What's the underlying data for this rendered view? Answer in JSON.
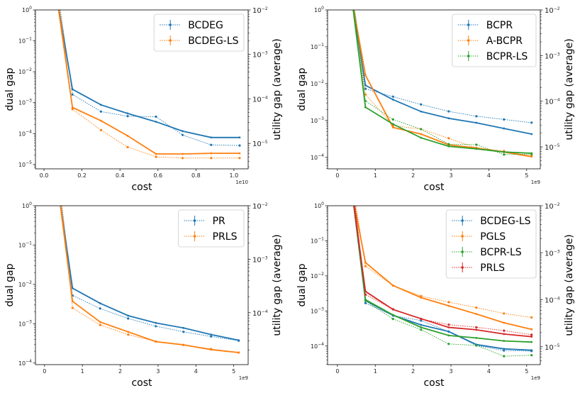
{
  "colors": {
    "blue": "#1f77b4",
    "orange": "#ff7f0e",
    "green": "#2ca02c",
    "red": "#d62728"
  },
  "chart_data": [
    {
      "type": "line",
      "xlabel": "cost",
      "ylabel": "dual gap",
      "y2label": "utility gap (average)",
      "x_offset_label": "1e10",
      "xlim": [
        -0.045,
        1.075
      ],
      "ylim_log10": [
        -5.14,
        0
      ],
      "y2lim_log10": [
        -5.57,
        -2
      ],
      "xticks": [
        "0.0",
        "0.2",
        "0.4",
        "0.6",
        "0.8",
        "1.0"
      ],
      "yticks": [
        0,
        -1,
        -2,
        -3,
        -4,
        -5
      ],
      "y2ticks": [
        -2,
        -3,
        -4,
        -5
      ],
      "legend_position": "upper right",
      "x": [
        0.07,
        0.15,
        0.3,
        0.44,
        0.59,
        0.73,
        0.88,
        1.03
      ],
      "series": [
        {
          "name": "BCDEG",
          "color": "blue",
          "dual_gap": [
            2,
            0.0027,
            0.00085,
            0.00045,
            0.00024,
            0.00012,
            7.5e-05,
            7.5e-05
          ],
          "utility_gap": [
            0.03,
            0.000126,
            5.2e-05,
            4.1e-05,
            4e-05,
            1.55e-05,
            9.3e-06,
            9e-06
          ]
        },
        {
          "name": "BCDEG-LS",
          "color": "orange",
          "dual_gap": [
            2,
            0.0007,
            0.00026,
            8.5e-05,
            2.2e-05,
            2.2e-05,
            2.3e-05,
            2.3e-05
          ],
          "utility_gap": [
            0.03,
            5.9e-05,
            2e-05,
            8.3e-06,
            5e-06,
            4.7e-06,
            4.7e-06,
            4.7e-06
          ]
        }
      ]
    },
    {
      "type": "line",
      "xlabel": "cost",
      "ylabel": "dual gap",
      "y2label": "utility gap (average)",
      "x_offset_label": "1e9",
      "xlim": [
        -0.26,
        5.36
      ],
      "ylim_log10": [
        -4.31,
        0
      ],
      "y2lim_log10": [
        -5.48,
        -2
      ],
      "xticks": [
        "0",
        "1",
        "2",
        "3",
        "4",
        "5"
      ],
      "yticks": [
        0,
        -1,
        -2,
        -3,
        -4
      ],
      "y2ticks": [
        -2,
        -3,
        -4,
        -5
      ],
      "legend_position": "upper right",
      "x": [
        0.38,
        0.74,
        1.47,
        2.21,
        2.94,
        3.67,
        4.4,
        5.13
      ],
      "series": [
        {
          "name": "BCPR",
          "color": "blue",
          "dual_gap": [
            2,
            0.009,
            0.0037,
            0.00175,
            0.00115,
            0.00087,
            0.00061,
            0.00043
          ],
          "utility_gap": [
            0.03,
            0.000187,
            0.000126,
            8.5e-05,
            6e-05,
            4.7e-05,
            4e-05,
            3.4e-05
          ]
        },
        {
          "name": "A-BCPR",
          "color": "orange",
          "dual_gap": [
            2,
            0.017,
            0.00065,
            0.00043,
            0.00022,
            0.00018,
            0.00014,
            0.000105
          ],
          "utility_gap": [
            0.03,
            0.000141,
            2.95e-05,
            2.45e-05,
            1.55e-05,
            9.5e-06,
            8.1e-06,
            6.3e-06
          ]
        },
        {
          "name": "BCPR-LS",
          "color": "green",
          "dual_gap": [
            2,
            0.0023,
            0.0008,
            0.00034,
            0.0002,
            0.00017,
            0.00014,
            0.00013
          ],
          "utility_gap": [
            0.03,
            0.000102,
            4e-05,
            2.45e-05,
            1.15e-05,
            1.12e-05,
            6.8e-06,
            6.9e-06
          ]
        }
      ]
    },
    {
      "type": "line",
      "xlabel": "cost",
      "ylabel": "dual gap",
      "y2label": "utility gap (average)",
      "x_offset_label": "1e9",
      "xlim": [
        -0.24,
        5.38
      ],
      "ylim_log10": [
        -4.04,
        0
      ],
      "y2lim_log10": [
        -4.97,
        -2
      ],
      "xticks": [
        "0",
        "1",
        "2",
        "3",
        "4",
        "5"
      ],
      "yticks": [
        0,
        -1,
        -2,
        -3,
        -4
      ],
      "y2ticks": [
        -2,
        -3,
        -4
      ],
      "legend_position": "upper right",
      "x": [
        0.38,
        0.74,
        1.47,
        2.21,
        2.94,
        3.67,
        4.4,
        5.13
      ],
      "series": [
        {
          "name": "PR",
          "color": "blue",
          "dual_gap": [
            2,
            0.008,
            0.0033,
            0.0016,
            0.00105,
            0.00078,
            0.00053,
            0.00038
          ],
          "utility_gap": [
            0.03,
            0.00021,
            0.00012,
            7.8e-05,
            5.6e-05,
            4.4e-05,
            3.6e-05,
            3e-05
          ]
        },
        {
          "name": "PRLS",
          "color": "orange",
          "dual_gap": [
            2,
            0.0037,
            0.0011,
            0.00062,
            0.00035,
            0.00029,
            0.00022,
            0.000185
          ],
          "utility_gap": [
            0.03,
            0.000123,
            5.9e-05,
            3.9e-05,
            2.9e-05,
            2.5e-05,
            2.1e-05,
            1.8e-05
          ]
        }
      ]
    },
    {
      "type": "line",
      "xlabel": "cost",
      "ylabel": "dual gap",
      "y2label": "utility gap (average)",
      "x_offset_label": "1e9",
      "xlim": [
        -0.26,
        5.36
      ],
      "ylim_log10": [
        -4.53,
        0
      ],
      "y2lim_log10": [
        -5.38,
        -2
      ],
      "xticks": [
        "0",
        "1",
        "2",
        "3",
        "4",
        "5"
      ],
      "yticks": [
        0,
        -1,
        -2,
        -3,
        -4
      ],
      "y2ticks": [
        -2,
        -3,
        -4,
        -5
      ],
      "legend_position": "upper right",
      "x": [
        0.4,
        0.74,
        1.47,
        2.21,
        2.94,
        3.67,
        4.4,
        5.13
      ],
      "series": [
        {
          "name": "BCDEG-LS",
          "color": "blue",
          "dual_gap": [
            2,
            0.002,
            0.00075,
            0.0004,
            0.00026,
            0.00011,
            8.3e-05,
            7.6e-05
          ],
          "utility_gap": [
            0.03,
            8.5e-05,
            4.6e-05,
            3.6e-05,
            2.1e-05,
            1.07e-05,
            8.3e-06,
            8.1e-06
          ]
        },
        {
          "name": "PGLS",
          "color": "orange",
          "dual_gap": [
            2,
            0.024,
            0.0053,
            0.0024,
            0.0014,
            0.00082,
            0.00046,
            0.0003
          ],
          "utility_gap": [
            0.03,
            0.00052,
            0.0002,
            0.00012,
            8.9e-05,
            6.8e-05,
            5.1e-05,
            4.2e-05
          ]
        },
        {
          "name": "BCPR-LS",
          "color": "green",
          "dual_gap": [
            2,
            0.0021,
            0.00077,
            0.00034,
            0.0002,
            0.00017,
            0.00014,
            0.00013
          ],
          "utility_gap": [
            0.03,
            9.5e-05,
            3.9e-05,
            2.3e-05,
            1.15e-05,
            1.07e-05,
            6.3e-06,
            6.6e-06
          ]
        },
        {
          "name": "PRLS",
          "color": "red",
          "dual_gap": [
            2,
            0.0036,
            0.0011,
            0.0006,
            0.00034,
            0.00029,
            0.00022,
            0.000185
          ],
          "utility_gap": [
            0.03,
            0.000129,
            6.3e-05,
            3.9e-05,
            2.95e-05,
            2.6e-05,
            2.2e-05,
            1.8e-05
          ]
        }
      ]
    }
  ]
}
